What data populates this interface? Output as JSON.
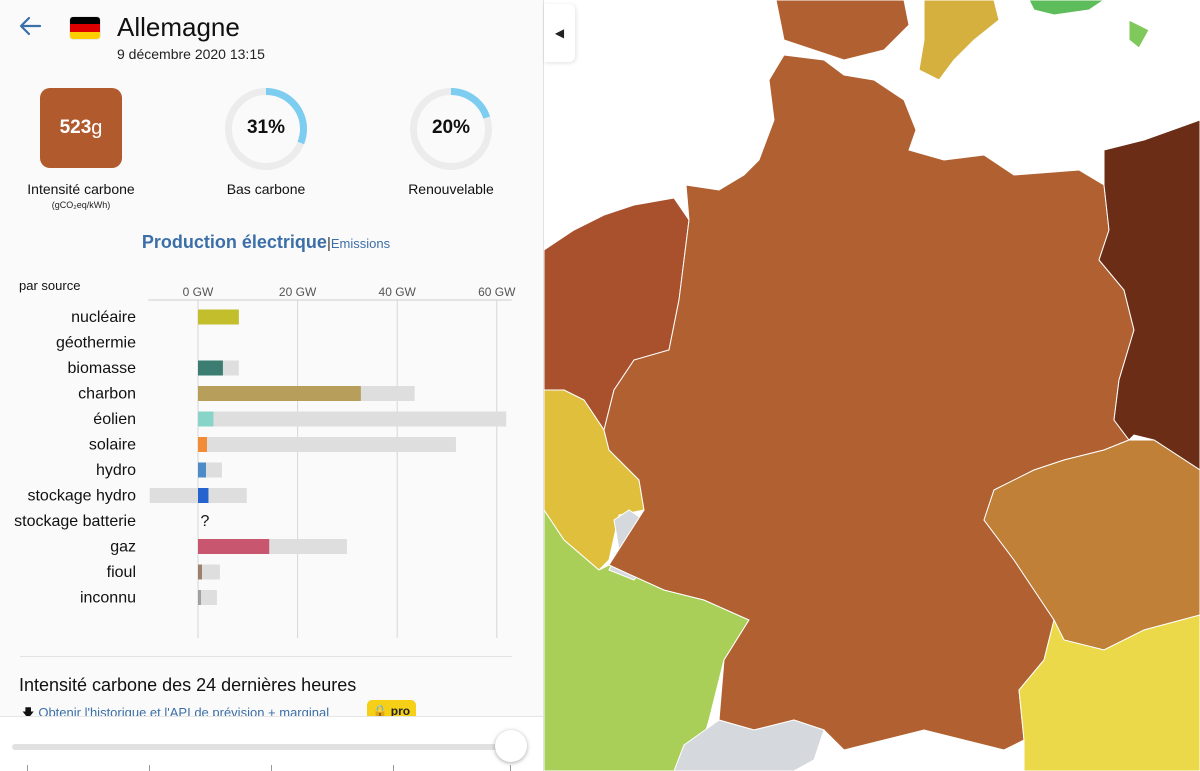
{
  "header": {
    "country": "Allemagne",
    "datetime": "9 décembre 2020 13:15",
    "flag_colors": [
      "#000000",
      "#dd0000",
      "#ffce00"
    ]
  },
  "kpis": {
    "carbon_intensity": {
      "value": "523",
      "unit": "g",
      "label": "Intensité carbone",
      "sublabel": "(gCO₂eq/kWh)",
      "color": "#b05a2e"
    },
    "low_carbon": {
      "value": "31%",
      "percent": 31,
      "label": "Bas carbone"
    },
    "renewable": {
      "value": "20%",
      "percent": 20,
      "label": "Renouvelable"
    }
  },
  "toggle": {
    "active": "Production électrique",
    "separator": "|",
    "inactive": "Emissions"
  },
  "per_source_label": "par source",
  "chart_data": {
    "type": "bar",
    "title": "",
    "xlabel": "",
    "ylabel": "",
    "xlim": [
      -10,
      63
    ],
    "ticks": [
      {
        "value": 0,
        "label": "0 GW"
      },
      {
        "value": 20,
        "label": "20 GW"
      },
      {
        "value": 40,
        "label": "40 GW"
      },
      {
        "value": 60,
        "label": "60 GW"
      }
    ],
    "categories": [
      "nucléaire",
      "géothermie",
      "biomasse",
      "charbon",
      "éolien",
      "solaire",
      "hydro",
      "stockage hydro",
      "stockage batterie",
      "gaz",
      "fioul",
      "inconnu"
    ],
    "series": [
      {
        "values": [
          8.2,
          0,
          5.0,
          32.7,
          3.1,
          1.8,
          1.6,
          2.1,
          null,
          14.3,
          0.8,
          0.6
        ]
      },
      {
        "values": [
          8.2,
          0,
          8.2,
          43.5,
          61.9,
          51.8,
          4.8,
          9.8,
          null,
          29.9,
          4.4,
          3.8
        ]
      },
      {
        "values": [
          0,
          0,
          0,
          0,
          0,
          0,
          0,
          -9.7,
          null,
          0,
          0,
          0
        ]
      }
    ],
    "colors": [
      "#c2be2c",
      "#f7a84a",
      "#3b7d70",
      "#b79e5a",
      "#88d4c8",
      "#f28c36",
      "#4d8bc8",
      "#2564cf",
      "#999999",
      "#c7566e",
      "#9d806c",
      "#a0a0a0"
    ],
    "unknown_mark": "?"
  },
  "history": {
    "title": "Intensité carbone des 24 dernières heures",
    "link_text": "Obtenir l'historique et l'API de prévision + marginal",
    "badge": "pro"
  },
  "slider": {
    "value_fraction": 1.0
  },
  "map": {
    "colors": {
      "germany": "#b06031",
      "france": "#a9512d",
      "poland": "#6b2d15",
      "czechia": "#c08038",
      "austria": "#ecd94a",
      "switzerland": "#aacf58",
      "belgium_lux": "#dfbf3c",
      "dk_islands": "#d6b03e",
      "sweden": "#5dbd5a",
      "grey_region": "#d5d9de"
    }
  }
}
